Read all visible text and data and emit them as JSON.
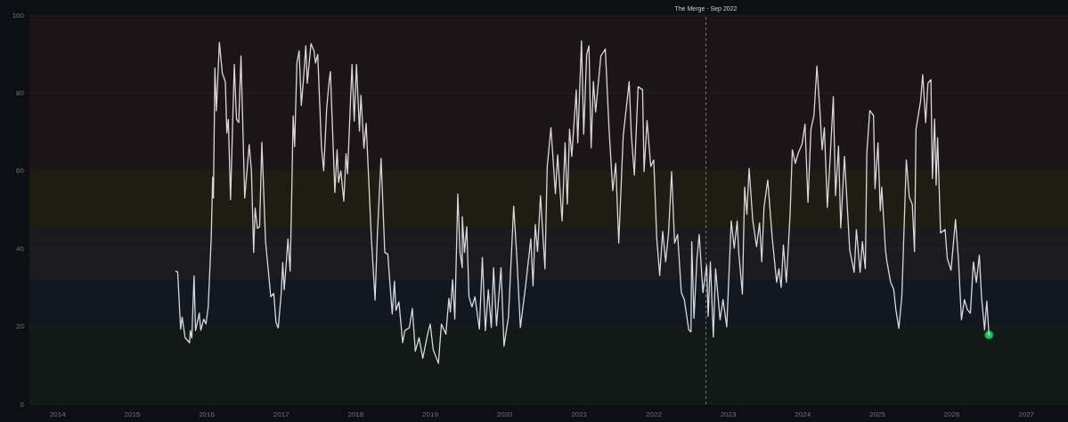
{
  "chart_data": {
    "type": "line",
    "xlim": [
      2013.62,
      2027.56
    ],
    "xticks": [
      2014,
      2015,
      2016,
      2017,
      2018,
      2019,
      2020,
      2021,
      2022,
      2023,
      2024,
      2025,
      2026,
      2027
    ],
    "ylim": [
      0,
      100
    ],
    "yticks": [
      0,
      20,
      40,
      60,
      80,
      100
    ],
    "grid": "y",
    "bands": [
      {
        "axis": "y",
        "from": 0,
        "to": 20,
        "color": "#111a16"
      },
      {
        "axis": "y",
        "from": 20,
        "to": 32,
        "color": "#121820"
      },
      {
        "axis": "y",
        "from": 32,
        "to": 45,
        "color": "#1b1b1f"
      },
      {
        "axis": "y",
        "from": 45,
        "to": 60,
        "color": "#1f1c14"
      },
      {
        "axis": "y",
        "from": 60,
        "to": 100,
        "color": "#1c1417"
      }
    ],
    "ref_lines": [
      {
        "axis": "x",
        "value": 2022.7,
        "label": "The Merge · Sep 2022",
        "color": "#777777",
        "line_style": "dashed"
      }
    ],
    "series": [
      {
        "color": "#d8d8dc",
        "marker": "none",
        "x": [
          2015.585,
          2015.61,
          2015.65,
          2015.67,
          2015.71,
          2015.77,
          2015.78,
          2015.8,
          2015.83,
          2015.85,
          2015.9,
          2015.92,
          2015.96,
          2015.99,
          2016.02,
          2016.06,
          2016.08,
          2016.09,
          2016.11,
          2016.13,
          2016.17,
          2016.21,
          2016.25,
          2016.27,
          2016.29,
          2016.32,
          2016.37,
          2016.4,
          2016.43,
          2016.46,
          2016.51,
          2016.57,
          2016.6,
          2016.63,
          2016.65,
          2016.68,
          2016.71,
          2016.74,
          2016.79,
          2016.86,
          2016.9,
          2016.93,
          2016.96,
          2017.0,
          2017.02,
          2017.04,
          2017.07,
          2017.09,
          2017.12,
          2017.14,
          2017.16,
          2017.18,
          2017.21,
          2017.24,
          2017.27,
          2017.3,
          2017.33,
          2017.35,
          2017.4,
          2017.44,
          2017.46,
          2017.49,
          2017.54,
          2017.57,
          2017.61,
          2017.64,
          2017.66,
          2017.72,
          2017.75,
          2017.77,
          2017.8,
          2017.84,
          2017.87,
          2017.89,
          2017.95,
          2017.98,
          2018.01,
          2018.05,
          2018.07,
          2018.11,
          2018.14,
          2018.21,
          2018.26,
          2018.29,
          2018.34,
          2018.39,
          2018.43,
          2018.49,
          2018.52,
          2018.54,
          2018.58,
          2018.63,
          2018.66,
          2018.72,
          2018.76,
          2018.8,
          2018.85,
          2018.9,
          2018.97,
          2019.0,
          2019.04,
          2019.11,
          2019.15,
          2019.21,
          2019.25,
          2019.27,
          2019.3,
          2019.33,
          2019.37,
          2019.4,
          2019.43,
          2019.43,
          2019.46,
          2019.49,
          2019.52,
          2019.56,
          2019.6,
          2019.66,
          2019.7,
          2019.74,
          2019.78,
          2019.82,
          2019.85,
          2019.89,
          2019.95,
          2019.99,
          2020.05,
          2020.12,
          2020.16,
          2020.21,
          2020.28,
          2020.35,
          2020.38,
          2020.41,
          2020.44,
          2020.48,
          2020.54,
          2020.57,
          2020.62,
          2020.68,
          2020.71,
          2020.77,
          2020.81,
          2020.84,
          2020.87,
          2020.9,
          2020.96,
          2020.98,
          2021.03,
          2021.06,
          2021.1,
          2021.13,
          2021.16,
          2021.19,
          2021.22,
          2021.29,
          2021.35,
          2021.4,
          2021.45,
          2021.49,
          2021.53,
          2021.59,
          2021.67,
          2021.7,
          2021.74,
          2021.79,
          2021.85,
          2021.87,
          2021.91,
          2021.96,
          2022.0,
          2022.04,
          2022.08,
          2022.12,
          2022.16,
          2022.2,
          2022.24,
          2022.28,
          2022.32,
          2022.37,
          2022.41,
          2022.47,
          2022.5,
          2022.51,
          2022.54,
          2022.58,
          2022.61,
          2022.66,
          2022.71,
          2022.73,
          2022.76,
          2022.8,
          2022.83,
          2022.89,
          2022.93,
          2022.98,
          2023.04,
          2023.08,
          2023.12,
          2023.14,
          2023.19,
          2023.22,
          2023.25,
          2023.28,
          2023.33,
          2023.38,
          2023.42,
          2023.45,
          2023.48,
          2023.53,
          2023.59,
          2023.65,
          2023.68,
          2023.71,
          2023.74,
          2023.78,
          2023.83,
          2023.86,
          2023.9,
          2023.94,
          2023.99,
          2024.03,
          2024.07,
          2024.11,
          2024.15,
          2024.19,
          2024.23,
          2024.26,
          2024.29,
          2024.33,
          2024.37,
          2024.41,
          2024.44,
          2024.48,
          2024.51,
          2024.56,
          2024.63,
          2024.69,
          2024.72,
          2024.77,
          2024.8,
          2024.84,
          2024.86,
          2024.9,
          2024.95,
          2024.97,
          2025.01,
          2025.04,
          2025.06,
          2025.11,
          2025.13,
          2025.18,
          2025.22,
          2025.25,
          2025.29,
          2025.33,
          2025.39,
          2025.43,
          2025.47,
          2025.5,
          2025.52,
          2025.58,
          2025.61,
          2025.65,
          2025.68,
          2025.72,
          2025.74,
          2025.77,
          2025.79,
          2025.81,
          2025.85,
          2025.91,
          2025.94,
          2025.99,
          2026.05,
          2026.09,
          2026.13,
          2026.17,
          2026.21,
          2026.25,
          2026.29,
          2026.33,
          2026.37,
          2026.4,
          2026.44,
          2026.47,
          2026.5
        ],
        "values": [
          34.2,
          34,
          19.3,
          22.4,
          17.1,
          15.8,
          18.9,
          17,
          33,
          18.9,
          23.4,
          19,
          21.9,
          20.6,
          25,
          42.5,
          58.3,
          53,
          86.4,
          75.4,
          93,
          85,
          82.9,
          69.7,
          73.2,
          52.6,
          87.3,
          73.2,
          72.4,
          89.5,
          53,
          66.7,
          60,
          39,
          50.4,
          45.2,
          45.6,
          67.3,
          41.7,
          27.6,
          28.5,
          21,
          19.6,
          28.5,
          36.4,
          29.4,
          36.8,
          42.5,
          34.2,
          53,
          74.1,
          66.2,
          87.7,
          90.8,
          76.8,
          83.8,
          92.1,
          82.5,
          92.7,
          90.8,
          87.7,
          89.9,
          66.2,
          60,
          75.9,
          82.5,
          85.5,
          54.4,
          65.4,
          57,
          60,
          52.2,
          64.4,
          59.2,
          87.3,
          72.8,
          87.3,
          70.2,
          79.4,
          65.8,
          72.2,
          42.5,
          26.8,
          43.4,
          63.2,
          39,
          38.6,
          23.2,
          31.6,
          24.1,
          26.3,
          15.8,
          18.9,
          19.7,
          24.6,
          13.6,
          17.1,
          11.8,
          18.4,
          20.6,
          14,
          10.5,
          20.6,
          18,
          27.2,
          23.7,
          32,
          21.9,
          54,
          39,
          35.1,
          48.2,
          39,
          45.6,
          27.6,
          25,
          27.6,
          19.3,
          37.7,
          18.9,
          29.4,
          19.7,
          35.1,
          20.2,
          35.1,
          14.9,
          22.4,
          50.9,
          38.6,
          19.7,
          30.4,
          42.5,
          30.4,
          46.2,
          39.2,
          53.6,
          34.8,
          61,
          71.1,
          54.1,
          64.1,
          47.1,
          67.2,
          51.4,
          70.7,
          63.7,
          80.8,
          67.2,
          93.4,
          69.4,
          89.9,
          92.1,
          65.9,
          82.9,
          75.1,
          89.5,
          91.3,
          70.7,
          54.9,
          61.9,
          41.4,
          68.9,
          82.9,
          68.9,
          58.9,
          81.6,
          80.8,
          59.8,
          72.9,
          61.1,
          62.8,
          42.7,
          33.1,
          44.4,
          36.6,
          44.4,
          59.8,
          41.4,
          43.6,
          28.7,
          26.9,
          19.1,
          18.6,
          41.8,
          22.1,
          37.4,
          43.6,
          28.7,
          35.7,
          22.6,
          36.6,
          17.3,
          34.8,
          21.7,
          26.9,
          19.9,
          47.1,
          40.1,
          47.1,
          39.2,
          28.3,
          55.8,
          48.8,
          60.6,
          47.1,
          40.5,
          46.6,
          36.6,
          50.6,
          57.6,
          42.7,
          31.3,
          34.8,
          30,
          40.9,
          31.3,
          48.8,
          65.4,
          61.9,
          64.6,
          66.8,
          72,
          51.9,
          70.7,
          74.2,
          86.9,
          75.5,
          65.4,
          71.1,
          50.6,
          64.1,
          79,
          53.6,
          66.3,
          45.3,
          63.7,
          39.6,
          33.9,
          44.9,
          33.9,
          41.8,
          34.8,
          64.6,
          75.5,
          74.2,
          55.4,
          67.2,
          49.7,
          55.8,
          39.6,
          36.6,
          31.3,
          29.6,
          24.3,
          19.5,
          27.8,
          62.8,
          53.2,
          51.4,
          39.2,
          70.7,
          77.7,
          84.7,
          72.4,
          82.5,
          83.4,
          58,
          73.3,
          56.3,
          68.5,
          44,
          44.9,
          37.4,
          34.4,
          47.5,
          37,
          21.7,
          26.9,
          24.3,
          23.4,
          36.6,
          31.3,
          38.3,
          27.4,
          19.1,
          26.5,
          17.8
        ]
      },
      {
        "type": "scatter",
        "color": "#22c55e",
        "marker": "circle",
        "x": [
          2026.5
        ],
        "values": [
          17.8
        ]
      }
    ]
  }
}
